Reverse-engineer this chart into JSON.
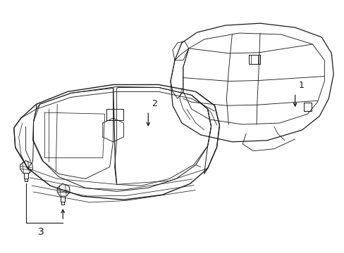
{
  "background_color": "#ffffff",
  "line_color": "#1a1a1a",
  "line_width": 0.9,
  "label_1": "1",
  "label_2": "2",
  "label_3": "3",
  "label_fontsize": 9,
  "figsize": [
    4.89,
    3.6
  ],
  "dpi": 100
}
